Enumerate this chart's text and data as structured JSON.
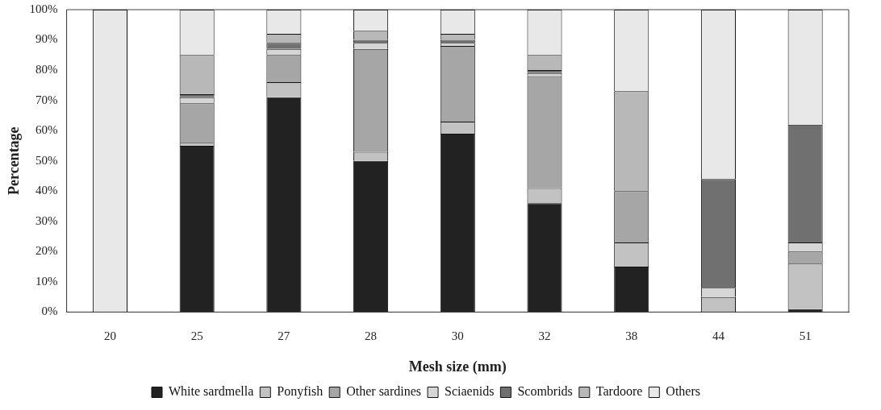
{
  "chart_data": {
    "type": "bar",
    "stacked": true,
    "xlabel": "Mesh size (mm)",
    "ylabel": "Percentage",
    "categories": [
      "20",
      "25",
      "27",
      "28",
      "30",
      "32",
      "38",
      "44",
      "51"
    ],
    "series": [
      {
        "name": "White sardmella",
        "color": "#222222",
        "values": [
          0,
          55,
          71,
          50,
          59,
          36,
          15,
          0,
          1
        ]
      },
      {
        "name": "Ponyfish",
        "color": "#c2c2c2",
        "values": [
          0,
          1,
          5,
          3,
          4,
          5,
          8,
          5,
          15
        ]
      },
      {
        "name": "Other sardines",
        "color": "#a6a6a6",
        "values": [
          0,
          13,
          9,
          34,
          25,
          37,
          17,
          0,
          4
        ]
      },
      {
        "name": "Sciaenids",
        "color": "#d6d6d6",
        "values": [
          0,
          2,
          2,
          2,
          1,
          1,
          0,
          3,
          3
        ]
      },
      {
        "name": "Scombrids",
        "color": "#707070",
        "values": [
          0,
          1,
          2,
          1,
          1,
          1,
          0,
          36,
          39
        ]
      },
      {
        "name": "Tardoore",
        "color": "#b8b8b8",
        "values": [
          0,
          13,
          3,
          3,
          2,
          5,
          33,
          0,
          0
        ]
      },
      {
        "name": "Others",
        "color": "#e8e8e8",
        "values": [
          100,
          15,
          8,
          7,
          8,
          15,
          27,
          56,
          38
        ]
      }
    ],
    "ylim": [
      0,
      100
    ],
    "yticks": [
      {
        "value": 0,
        "label": "0%"
      },
      {
        "value": 10,
        "label": "10%"
      },
      {
        "value": 20,
        "label": "20%"
      },
      {
        "value": 30,
        "label": "30%"
      },
      {
        "value": 40,
        "label": "40%"
      },
      {
        "value": 50,
        "label": "50%"
      },
      {
        "value": 60,
        "label": "60%"
      },
      {
        "value": 70,
        "label": "70%"
      },
      {
        "value": 80,
        "label": "80%"
      },
      {
        "value": 90,
        "label": "90%"
      },
      {
        "value": 100,
        "label": "100%"
      }
    ],
    "grid": false,
    "legend": "bottom"
  }
}
